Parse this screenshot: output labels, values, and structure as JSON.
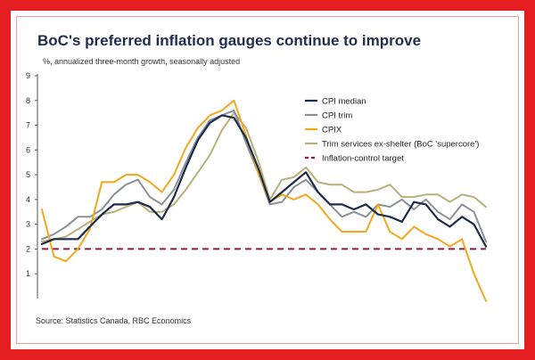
{
  "chart_data": {
    "type": "line",
    "title": "BoC's preferred inflation gauges continue to improve",
    "subtitle": "%, annualized three-month growth, seasonally adjusted",
    "source": "Source: Statistics Canada, RBC Economics",
    "xlabel": "",
    "ylabel": "",
    "ylim": [
      0,
      9
    ],
    "yticks": [
      "9",
      "8",
      "7",
      "6",
      "5",
      "4",
      "3",
      "2",
      "1"
    ],
    "legend_position": "top-right",
    "grid": false,
    "series": [
      {
        "name": "CPI median",
        "color": "#1c2b4a",
        "values": [
          2.2,
          2.4,
          2.4,
          2.4,
          2.9,
          3.4,
          3.8,
          3.8,
          3.9,
          3.7,
          3.2,
          4.1,
          5.3,
          6.4,
          7.1,
          7.4,
          7.3,
          6.5,
          5.3,
          3.9,
          4.3,
          4.7,
          5.1,
          4.3,
          3.8,
          3.8,
          3.6,
          3.8,
          3.4,
          3.3,
          3.1,
          3.9,
          3.8,
          3.2,
          2.9,
          3.3,
          3.0,
          2.1
        ]
      },
      {
        "name": "CPI trim",
        "color": "#8a9098",
        "values": [
          2.4,
          2.6,
          2.9,
          3.3,
          3.3,
          3.6,
          4.2,
          4.6,
          4.8,
          4.1,
          3.8,
          4.4,
          5.5,
          6.5,
          7.2,
          7.4,
          7.6,
          6.3,
          5.1,
          3.8,
          3.9,
          4.5,
          4.8,
          4.3,
          3.8,
          3.3,
          3.5,
          3.3,
          3.8,
          3.7,
          4.0,
          3.6,
          4.0,
          3.5,
          3.2,
          3.8,
          3.5,
          2.3
        ]
      },
      {
        "name": "CPIX",
        "color": "#f2a81d",
        "values": [
          3.6,
          1.7,
          1.5,
          2.0,
          2.8,
          4.7,
          4.7,
          5.0,
          5.0,
          4.7,
          4.3,
          5.0,
          6.1,
          6.9,
          7.4,
          7.6,
          8.0,
          6.6,
          5.1,
          3.9,
          4.2,
          4.0,
          4.2,
          3.8,
          3.2,
          2.7,
          2.7,
          2.7,
          3.8,
          2.7,
          2.4,
          2.9,
          2.6,
          2.4,
          2.1,
          2.4,
          1.0,
          -0.1
        ]
      },
      {
        "name": "Trim services ex-shelter (BoC 'supercore')",
        "color": "#b8b07a",
        "values": [
          2.3,
          2.4,
          2.5,
          2.8,
          3.1,
          3.4,
          3.5,
          3.7,
          3.9,
          3.5,
          3.5,
          3.8,
          4.4,
          5.1,
          5.8,
          6.8,
          7.5,
          6.9,
          5.6,
          4.0,
          4.8,
          4.9,
          5.3,
          4.7,
          4.6,
          4.6,
          4.3,
          4.3,
          4.4,
          4.6,
          4.1,
          4.1,
          4.2,
          4.2,
          3.9,
          4.2,
          4.1,
          3.7
        ]
      },
      {
        "name": "Inflation-control target",
        "color": "#8e1b46",
        "dashed": true,
        "values": [
          2,
          2,
          2,
          2,
          2,
          2,
          2,
          2,
          2,
          2,
          2,
          2,
          2,
          2,
          2,
          2,
          2,
          2,
          2,
          2,
          2,
          2,
          2,
          2,
          2,
          2,
          2,
          2,
          2,
          2,
          2,
          2,
          2,
          2,
          2,
          2,
          2,
          2
        ]
      }
    ]
  }
}
